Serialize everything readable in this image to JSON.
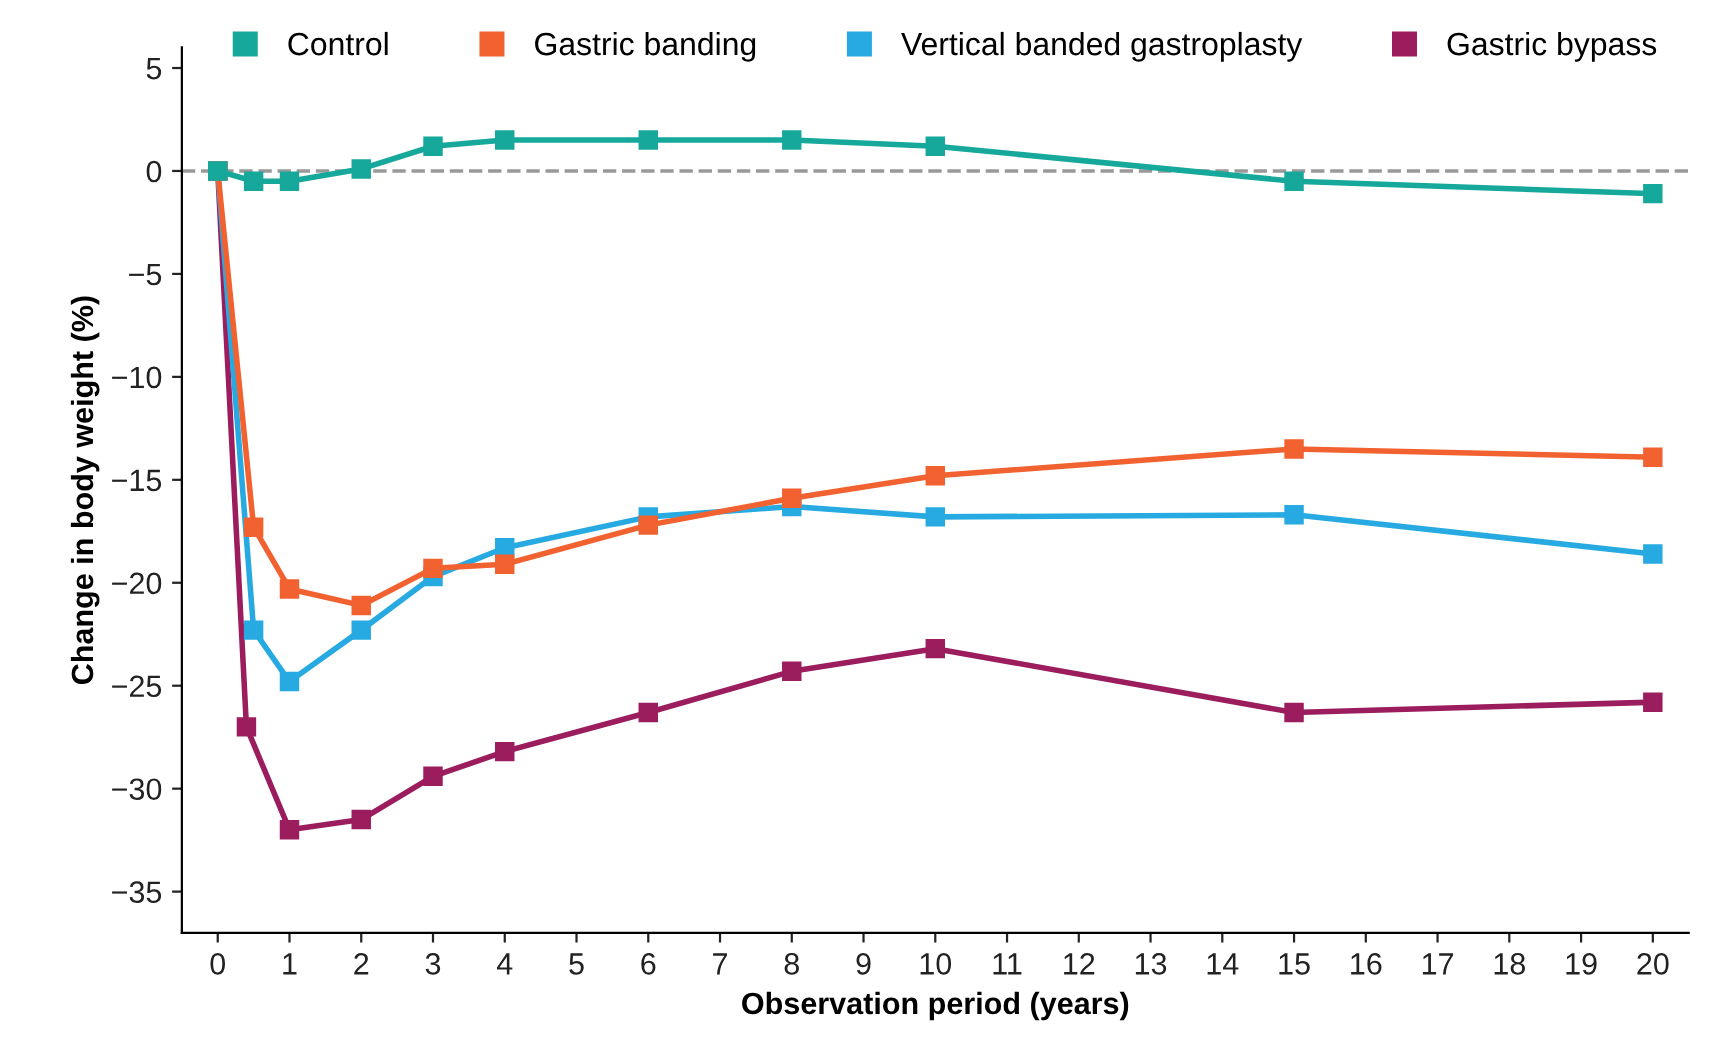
{
  "chart_data": {
    "type": "line",
    "xlabel": "Observation period (years)",
    "ylabel": "Change in body weight (%)",
    "xlim": [
      -0.5,
      20.5
    ],
    "xticks": [
      0,
      1,
      2,
      3,
      4,
      5,
      6,
      7,
      8,
      9,
      10,
      11,
      12,
      13,
      14,
      15,
      16,
      17,
      18,
      19,
      20
    ],
    "ylim": [
      -37,
      6
    ],
    "yticks": [
      {
        "value": 5,
        "label": "5"
      },
      {
        "value": 0,
        "label": "0"
      },
      {
        "value": -5,
        "label": "−5"
      },
      {
        "value": -10,
        "label": "−10"
      },
      {
        "value": -15,
        "label": "−15"
      },
      {
        "value": -20,
        "label": "−20"
      },
      {
        "value": -25,
        "label": "−25"
      },
      {
        "value": -30,
        "label": "−30"
      },
      {
        "value": -35,
        "label": "−35"
      }
    ],
    "grid": false,
    "legend": "top",
    "marker": "square",
    "line_style": "solid",
    "ref_lines": [
      {
        "axis": "y",
        "value": 0,
        "color": "#999999",
        "line_style": "dashed"
      }
    ],
    "series": [
      {
        "name": "Control",
        "color": "#16a89a",
        "x": [
          0,
          0.5,
          1,
          2,
          3,
          4,
          6,
          8,
          10,
          15,
          20
        ],
        "values": [
          0,
          -0.5,
          -0.5,
          0.1,
          1.2,
          1.5,
          1.5,
          1.5,
          1.2,
          -0.5,
          -1.1
        ]
      },
      {
        "name": "Gastric banding",
        "color": "#f26130",
        "x": [
          0,
          0.5,
          1,
          2,
          3,
          4,
          6,
          8,
          10,
          15,
          20
        ],
        "values": [
          0,
          -17.3,
          -20.3,
          -21.1,
          -19.3,
          -19.1,
          -17.2,
          -15.9,
          -14.8,
          -13.5,
          -13.9
        ]
      },
      {
        "name": "Vertical banded gastroplasty",
        "color": "#27aae1",
        "x": [
          0,
          0.5,
          1,
          2,
          3,
          4,
          6,
          8,
          10,
          15,
          20
        ],
        "values": [
          0,
          -22.3,
          -24.8,
          -22.3,
          -19.7,
          -18.3,
          -16.8,
          -16.3,
          -16.8,
          -16.7,
          -18.6
        ]
      },
      {
        "name": "Gastric bypass",
        "color": "#9b1d5e",
        "x": [
          0,
          0.4,
          1,
          2,
          3,
          4,
          6,
          8,
          10,
          15,
          20
        ],
        "values": [
          0,
          -27,
          -32,
          -31.5,
          -29.4,
          -28.2,
          -26.3,
          -24.3,
          -23.2,
          -26.3,
          -25.8
        ]
      }
    ]
  }
}
